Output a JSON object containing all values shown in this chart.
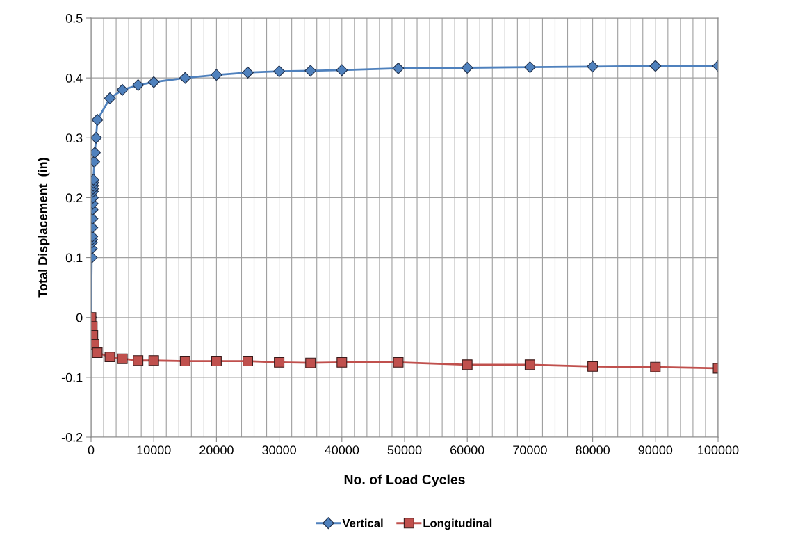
{
  "chart_data": {
    "type": "line",
    "xlabel": "No. of Load Cycles",
    "ylabel": "Total Displacement  (in)",
    "xlim": [
      0,
      100000
    ],
    "ylim": [
      -0.2,
      0.5
    ],
    "xticks": [
      0,
      {
        "value": 2000,
        "label": null
      },
      {
        "value": 4000,
        "label": null
      },
      {
        "value": 6000,
        "label": null
      },
      {
        "value": 8000,
        "label": null
      },
      10000,
      {
        "value": 12000,
        "label": null
      },
      {
        "value": 14000,
        "label": null
      },
      {
        "value": 16000,
        "label": null
      },
      {
        "value": 18000,
        "label": null
      },
      20000,
      {
        "value": 22000,
        "label": null
      },
      {
        "value": 24000,
        "label": null
      },
      {
        "value": 26000,
        "label": null
      },
      {
        "value": 28000,
        "label": null
      },
      30000,
      {
        "value": 32000,
        "label": null
      },
      {
        "value": 34000,
        "label": null
      },
      {
        "value": 36000,
        "label": null
      },
      {
        "value": 38000,
        "label": null
      },
      40000,
      {
        "value": 42000,
        "label": null
      },
      {
        "value": 44000,
        "label": null
      },
      {
        "value": 46000,
        "label": null
      },
      {
        "value": 48000,
        "label": null
      },
      50000,
      {
        "value": 52000,
        "label": null
      },
      {
        "value": 54000,
        "label": null
      },
      {
        "value": 56000,
        "label": null
      },
      {
        "value": 58000,
        "label": null
      },
      60000,
      {
        "value": 62000,
        "label": null
      },
      {
        "value": 64000,
        "label": null
      },
      {
        "value": 66000,
        "label": null
      },
      {
        "value": 68000,
        "label": null
      },
      70000,
      {
        "value": 72000,
        "label": null
      },
      {
        "value": 74000,
        "label": null
      },
      {
        "value": 76000,
        "label": null
      },
      {
        "value": 78000,
        "label": null
      },
      80000,
      {
        "value": 82000,
        "label": null
      },
      {
        "value": 84000,
        "label": null
      },
      {
        "value": 86000,
        "label": null
      },
      {
        "value": 88000,
        "label": null
      },
      90000,
      {
        "value": 92000,
        "label": null
      },
      {
        "value": 94000,
        "label": null
      },
      {
        "value": 96000,
        "label": null
      },
      {
        "value": 98000,
        "label": null
      },
      100000
    ],
    "yticks": [
      {
        "value": -0.2,
        "label": "-0.2"
      },
      {
        "value": -0.1,
        "label": "-0.1"
      },
      0,
      0.1,
      0.2,
      0.3,
      0.4,
      0.5
    ],
    "grid": true,
    "legend": "bottom",
    "series": [
      {
        "name": "Vertical",
        "color": "#4f81bd",
        "marker": "diamond",
        "x": [
          0,
          100,
          120,
          140,
          160,
          180,
          200,
          220,
          240,
          260,
          280,
          300,
          320,
          340,
          360,
          380,
          500,
          600,
          800,
          1000,
          3000,
          5000,
          7500,
          10000,
          15000,
          20000,
          25000,
          30000,
          35000,
          40000,
          49000,
          60000,
          70000,
          80000,
          90000,
          100000
        ],
        "values": [
          0,
          0.1,
          0.115,
          0.125,
          0.13,
          0.135,
          0.15,
          0.165,
          0.18,
          0.19,
          0.2,
          0.21,
          0.215,
          0.22,
          0.225,
          0.23,
          0.26,
          0.275,
          0.3,
          0.33,
          0.366,
          0.38,
          0.388,
          0.393,
          0.4,
          0.405,
          0.409,
          0.411,
          0.412,
          0.413,
          0.416,
          0.417,
          0.418,
          0.419,
          0.42,
          0.42
        ]
      },
      {
        "name": "Longitudinal",
        "color": "#c0504d",
        "marker": "square",
        "x": [
          0,
          200,
          300,
          500,
          1000,
          3000,
          5000,
          7500,
          10000,
          15000,
          20000,
          25000,
          30000,
          35000,
          40000,
          49000,
          60000,
          70000,
          80000,
          90000,
          100000
        ],
        "values": [
          0,
          -0.015,
          -0.03,
          -0.045,
          -0.059,
          -0.066,
          -0.069,
          -0.072,
          -0.072,
          -0.073,
          -0.073,
          -0.073,
          -0.075,
          -0.076,
          -0.075,
          -0.075,
          -0.079,
          -0.079,
          -0.082,
          -0.083,
          -0.085
        ]
      }
    ]
  }
}
